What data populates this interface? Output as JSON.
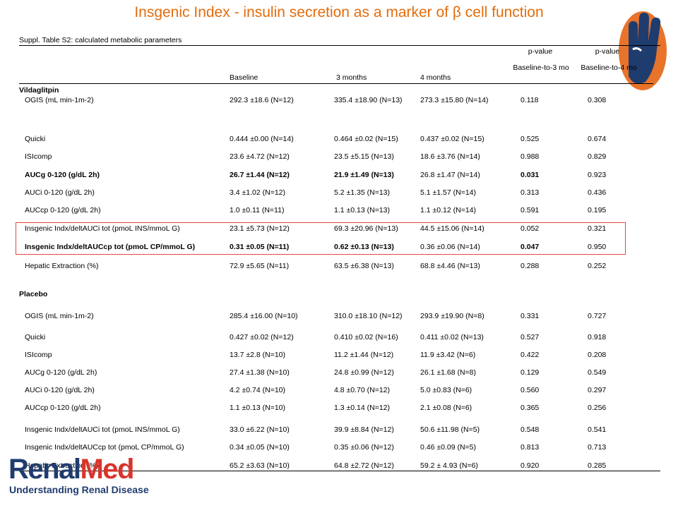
{
  "title": "Insgenic Index - insulin secretion as a marker of β cell function",
  "table": {
    "caption": "Suppl. Table S2: calculated metabolic parameters",
    "columns": [
      "Baseline",
      "3 months",
      "4 months"
    ],
    "pvalue_headers": [
      {
        "top": "p-value",
        "bottom": "Baseline-to-3 mo"
      },
      {
        "top": "p-value",
        "bottom": "Baseline-to-4 mo"
      }
    ],
    "sections": [
      {
        "name": "Vildaglitpin",
        "rows": [
          {
            "cells": [
              "OGIS (mL min-1m-2)",
              "292.3 ±18.6 (N=12)",
              "335.4 ±18.90 (N=13)",
              "273.3 ±15.80 (N=14)",
              "0.118",
              "0.308"
            ]
          },
          {
            "cells": [
              "Quicki",
              "0.444 ±0.00 (N=14)",
              "0.464 ±0.02 (N=15)",
              "0.437 ±0.02 (N=15)",
              "0.525",
              "0.674"
            ]
          },
          {
            "cells": [
              "ISIcomp",
              "23.6 ±4.72 (N=12)",
              "23.5 ±5.15 (N=13)",
              "18.6 ±3.76 (N=14)",
              "0.988",
              "0.829"
            ]
          },
          {
            "cells": [
              "AUCg 0-120 (g/dL 2h)",
              "26.7 ±1.44 (N=12)",
              "21.9 ±1.49 (N=13)",
              "26.8 ±1.47 (N=14)",
              "0.031",
              "0.923"
            ],
            "bold": [
              0,
              1,
              2,
              4
            ]
          },
          {
            "cells": [
              "AUCi 0-120 (g/dL 2h)",
              "3.4 ±1.02 (N=12)",
              "5.2 ±1.35 (N=13)",
              "5.1 ±1.57 (N=14)",
              "0.313",
              "0.436"
            ]
          },
          {
            "cells": [
              "AUCcp 0-120 (g/dL 2h)",
              "1.0 ±0.11 (N=11)",
              "1.1 ±0.13 (N=13)",
              "1.1 ±0.12 (N=14)",
              "0.591",
              "0.195"
            ]
          },
          {
            "cells": [
              "Insgenic Indx/deltAUCi tot (pmoL INS/mmoL G)",
              "23.1 ±5.73 (N=12)",
              "69.3 ±20.96 (N=13)",
              "44.5 ±15.06 (N=14)",
              "0.052",
              "0.321"
            ]
          },
          {
            "cells": [
              "Insgenic Indx/deltAUCcp tot (pmoL CP/mmoL G)",
              "0.31 ±0.05 (N=11)",
              "0.62 ±0.13 (N=13)",
              "0.36 ±0.06 (N=14)",
              "0.047",
              "0.950"
            ],
            "bold": [
              0,
              1,
              2,
              4
            ]
          },
          {
            "cells": [
              "Hepatic Extraction (%)",
              "72.9 ±5.65 (N=11)",
              "63.5 ±6.38 (N=13)",
              "68.8 ±4.46 (N=13)",
              "0.288",
              "0.252"
            ]
          }
        ]
      },
      {
        "name": "Placebo",
        "rows": [
          {
            "cells": [
              "OGIS (mL min-1m-2)",
              "285.4 ±16.00 (N=10)",
              "310.0 ±18.10 (N=12)",
              "293.9 ±19.90 (N=8)",
              "0.331",
              "0.727"
            ]
          },
          {
            "cells": [
              "Quicki",
              "0.427 ±0.02 (N=12)",
              "0.410 ±0.02 (N=16)",
              "0.411 ±0.02 (N=13)",
              "0.527",
              "0.918"
            ]
          },
          {
            "cells": [
              "ISIcomp",
              "13.7 ±2.8 (N=10)",
              "11.2 ±1.44 (N=12)",
              "11.9 ±3.42 (N=6)",
              "0.422",
              "0.208"
            ]
          },
          {
            "cells": [
              "AUCg 0-120 (g/dL 2h)",
              "27.4 ±1.38 (N=10)",
              "24.8 ±0.99 (N=12)",
              "26.1 ±1.68 (N=8)",
              "0.129",
              "0.549"
            ]
          },
          {
            "cells": [
              "AUCi 0-120 (g/dL 2h)",
              "4.2 ±0.74 (N=10)",
              "4.8 ±0.70 (N=12)",
              "5.0 ±0.83 (N=6)",
              "0.560",
              "0.297"
            ]
          },
          {
            "cells": [
              "AUCcp 0-120 (g/dL 2h)",
              "1.1 ±0.13 (N=10)",
              "1.3 ±0.14 (N=12)",
              "2.1 ±0.08 (N=6)",
              "0.365",
              "0.256"
            ]
          },
          {
            "cells": [
              "Insgenic Indx/deltAUCi tot (pmoL INS/mmoL G)",
              "33.0 ±6.22 (N=10)",
              "39.9 ±8.84 (N=12)",
              "50.6 ±11.98 (N=5)",
              "0.548",
              "0.541"
            ]
          },
          {
            "cells": [
              "Insgenic Indx/deltAUCcp tot (pmoL CP/mmoL G)",
              "0.34 ±0.05 (N=10)",
              "0.35 ±0.06 (N=12)",
              "0.46 ±0.09 (N=5)",
              "0.813",
              "0.713"
            ]
          },
          {
            "cells": [
              "Hepatic Extraction (%)",
              "65.2 ±3.63 (N=10)",
              "64.8 ±2.72 (N=12)",
              "59.2 ± 4.93 (N=6)",
              "0.920",
              "0.285"
            ]
          }
        ]
      }
    ]
  },
  "logo": {
    "part1": "Renal",
    "part2": "Med",
    "tagline": "Understanding Renal Disease"
  }
}
